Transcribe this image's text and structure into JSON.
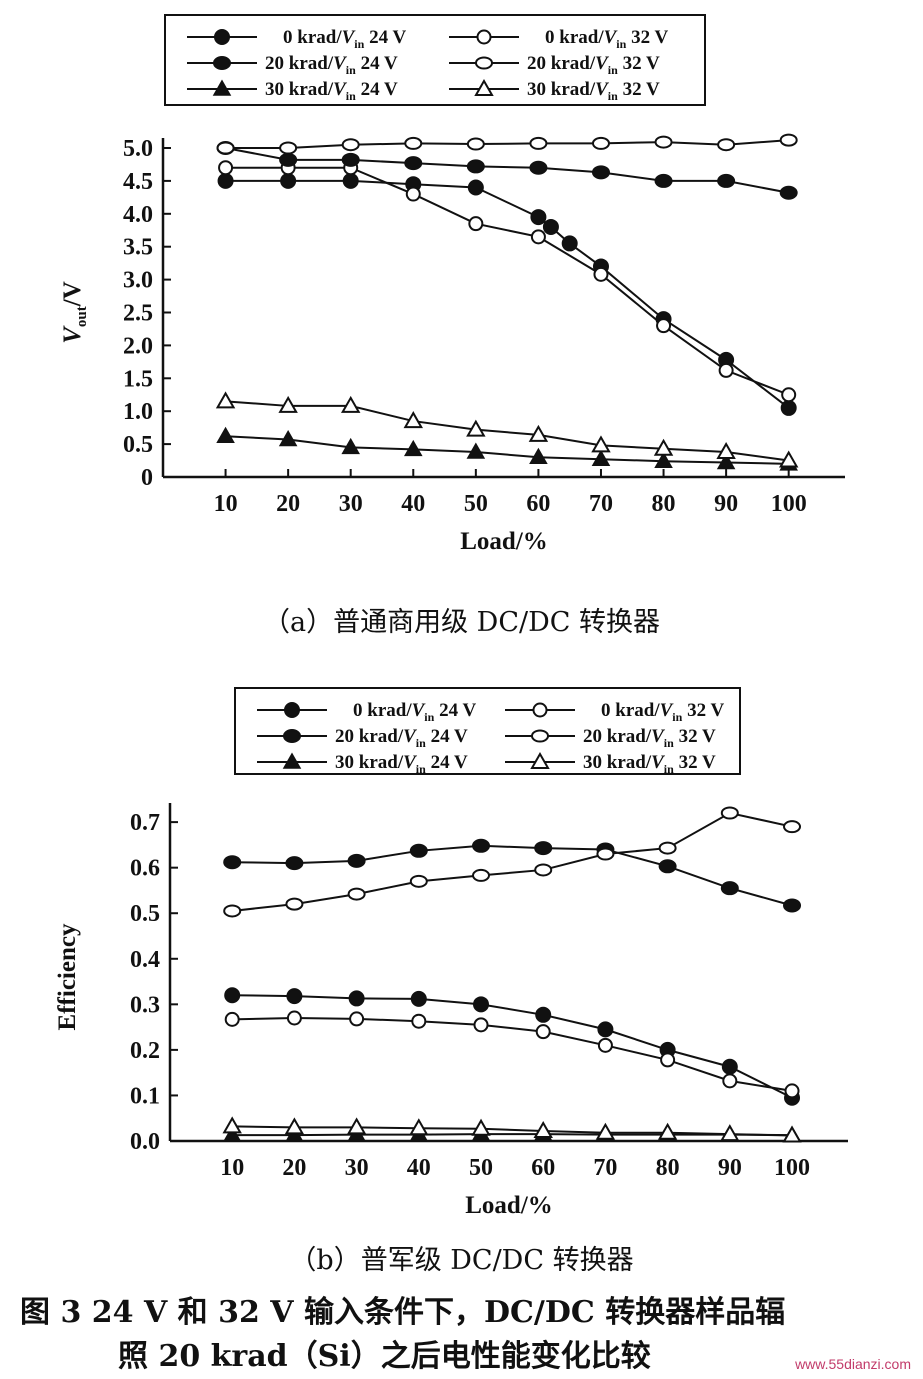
{
  "chart_data": [
    {
      "type": "line",
      "caption": "（a）普通商用级 DC/DC 转换器",
      "xlabel": "Load/%",
      "ylabel_main": "V",
      "ylabel_sub": "out",
      "ylabel_suffix": "/V",
      "x": [
        10,
        20,
        30,
        40,
        50,
        60,
        70,
        80,
        90,
        100
      ],
      "xlim": [
        0,
        109
      ],
      "ylim": [
        0,
        5.0
      ],
      "yticks": [
        0,
        0.5,
        1.0,
        1.5,
        2.0,
        2.5,
        3.0,
        3.5,
        4.0,
        4.5,
        5.0
      ],
      "ytick_labels": [
        "0",
        "0.5",
        "1.0",
        "1.5",
        "2.0",
        "2.5",
        "3.0",
        "3.5",
        "4.0",
        "4.5",
        "5.0"
      ],
      "legend_position": "top",
      "series": [
        {
          "name": "0 krad/Vin 24 V",
          "label_a": "0 krad/",
          "label_v": "V",
          "label_in": "in",
          "label_b": " 24 V",
          "marker": "filled-circle",
          "x": [
            10,
            20,
            30,
            40,
            50,
            60,
            62,
            65,
            70,
            80,
            90,
            100
          ],
          "values": [
            4.5,
            4.5,
            4.5,
            4.45,
            4.4,
            3.95,
            3.8,
            3.55,
            3.2,
            2.4,
            1.78,
            1.05
          ]
        },
        {
          "name": "0 krad/Vin 32 V",
          "label_a": "0 krad/",
          "label_v": "V",
          "label_in": "in",
          "label_b": " 32 V",
          "marker": "open-circle",
          "x": [
            10,
            20,
            30,
            40,
            50,
            60,
            70,
            80,
            90,
            100
          ],
          "values": [
            4.7,
            4.7,
            4.7,
            4.3,
            3.85,
            3.65,
            3.08,
            2.3,
            1.62,
            1.25
          ]
        },
        {
          "name": "20 krad/Vin 24 V",
          "label_a": "20 krad/",
          "label_v": "V",
          "label_in": "in",
          "label_b": " 24 V",
          "marker": "filled-ellipse",
          "x": [
            10,
            20,
            30,
            40,
            50,
            60,
            70,
            80,
            90,
            100
          ],
          "values": [
            5.0,
            4.82,
            4.82,
            4.77,
            4.72,
            4.7,
            4.63,
            4.5,
            4.5,
            4.32
          ]
        },
        {
          "name": "20 krad/Vin 32 V",
          "label_a": "20 krad/",
          "label_v": "V",
          "label_in": "in",
          "label_b": " 32 V",
          "marker": "open-ellipse",
          "x": [
            10,
            20,
            30,
            40,
            50,
            60,
            70,
            80,
            90,
            100
          ],
          "values": [
            5.0,
            5.0,
            5.05,
            5.07,
            5.06,
            5.07,
            5.07,
            5.09,
            5.05,
            5.12
          ]
        },
        {
          "name": "30 krad/Vin 24 V",
          "label_a": "30 krad/",
          "label_v": "V",
          "label_in": "in",
          "label_b": " 24 V",
          "marker": "filled-triangle",
          "x": [
            10,
            20,
            30,
            40,
            50,
            60,
            70,
            80,
            90,
            100
          ],
          "values": [
            0.62,
            0.57,
            0.45,
            0.42,
            0.38,
            0.3,
            0.27,
            0.24,
            0.22,
            0.2
          ]
        },
        {
          "name": "30 krad/Vin 32 V",
          "label_a": "30 krad/",
          "label_v": "V",
          "label_in": "in",
          "label_b": " 32 V",
          "marker": "open-triangle",
          "x": [
            10,
            20,
            30,
            40,
            50,
            60,
            70,
            80,
            90,
            100
          ],
          "values": [
            1.15,
            1.08,
            1.08,
            0.85,
            0.72,
            0.64,
            0.48,
            0.43,
            0.38,
            0.25
          ]
        }
      ]
    },
    {
      "type": "line",
      "caption": "（b）普军级 DC/DC 转换器",
      "xlabel": "Load/%",
      "ylabel": "Efficiency",
      "x": [
        10,
        20,
        30,
        40,
        50,
        60,
        70,
        80,
        90,
        100
      ],
      "xlim": [
        0,
        109
      ],
      "ylim": [
        0,
        0.72
      ],
      "yticks": [
        0,
        0.1,
        0.2,
        0.3,
        0.4,
        0.5,
        0.6,
        0.7
      ],
      "ytick_labels": [
        "0.0",
        "0.1",
        "0.2",
        "0.3",
        "0.4",
        "0.5",
        "0.6",
        "0.7"
      ],
      "legend_position": "top",
      "series": [
        {
          "name": "0 krad/Vin 24 V",
          "label_a": "0 krad/",
          "label_v": "V",
          "label_in": "in",
          "label_b": " 24 V",
          "marker": "filled-circle",
          "x": [
            10,
            20,
            30,
            40,
            50,
            60,
            70,
            80,
            90,
            100
          ],
          "values": [
            0.32,
            0.318,
            0.313,
            0.312,
            0.3,
            0.277,
            0.245,
            0.2,
            0.163,
            0.095
          ]
        },
        {
          "name": "0 krad/Vin 32 V",
          "label_a": "0 krad/",
          "label_v": "V",
          "label_in": "in",
          "label_b": " 32 V",
          "marker": "open-circle",
          "x": [
            10,
            20,
            30,
            40,
            50,
            60,
            70,
            80,
            90,
            100
          ],
          "values": [
            0.267,
            0.27,
            0.268,
            0.263,
            0.255,
            0.24,
            0.21,
            0.178,
            0.132,
            0.11
          ]
        },
        {
          "name": "20 krad/Vin 24 V",
          "label_a": "20 krad/",
          "label_v": "V",
          "label_in": "in",
          "label_b": " 24 V",
          "marker": "filled-ellipse",
          "x": [
            10,
            20,
            30,
            40,
            50,
            60,
            70,
            80,
            90,
            100
          ],
          "values": [
            0.612,
            0.61,
            0.615,
            0.637,
            0.648,
            0.643,
            0.64,
            0.603,
            0.555,
            0.517
          ]
        },
        {
          "name": "20 krad/Vin 32 V",
          "label_a": "20 krad/",
          "label_v": "V",
          "label_in": "in",
          "label_b": " 32 V",
          "marker": "open-ellipse",
          "x": [
            10,
            20,
            30,
            40,
            50,
            60,
            70,
            80,
            90,
            100
          ],
          "values": [
            0.505,
            0.52,
            0.542,
            0.57,
            0.583,
            0.595,
            0.63,
            0.643,
            0.72,
            0.69
          ]
        },
        {
          "name": "30 krad/Vin 24 V",
          "label_a": "30 krad/",
          "label_v": "V",
          "label_in": "in",
          "label_b": " 24 V",
          "marker": "filled-triangle",
          "x": [
            10,
            20,
            30,
            40,
            50,
            60,
            70,
            80,
            90,
            100
          ],
          "values": [
            0.013,
            0.013,
            0.014,
            0.014,
            0.015,
            0.015,
            0.014,
            0.014,
            0.014,
            0.013
          ]
        },
        {
          "name": "30 krad/Vin 32 V",
          "label_a": "30 krad/",
          "label_v": "V",
          "label_in": "in",
          "label_b": " 32 V",
          "marker": "open-triangle",
          "x": [
            10,
            20,
            30,
            40,
            50,
            60,
            70,
            80,
            90,
            100
          ],
          "values": [
            0.032,
            0.03,
            0.03,
            0.028,
            0.027,
            0.022,
            0.018,
            0.018,
            0.015,
            0.012
          ]
        }
      ]
    }
  ],
  "figure_caption_line1": "图 3   24 V 和 32 V 输入条件下，DC/DC 转换器样品辐",
  "figure_caption_line2": "照 20 krad（Si）之后电性能变化比较",
  "watermark": "www.55dianzi.com"
}
